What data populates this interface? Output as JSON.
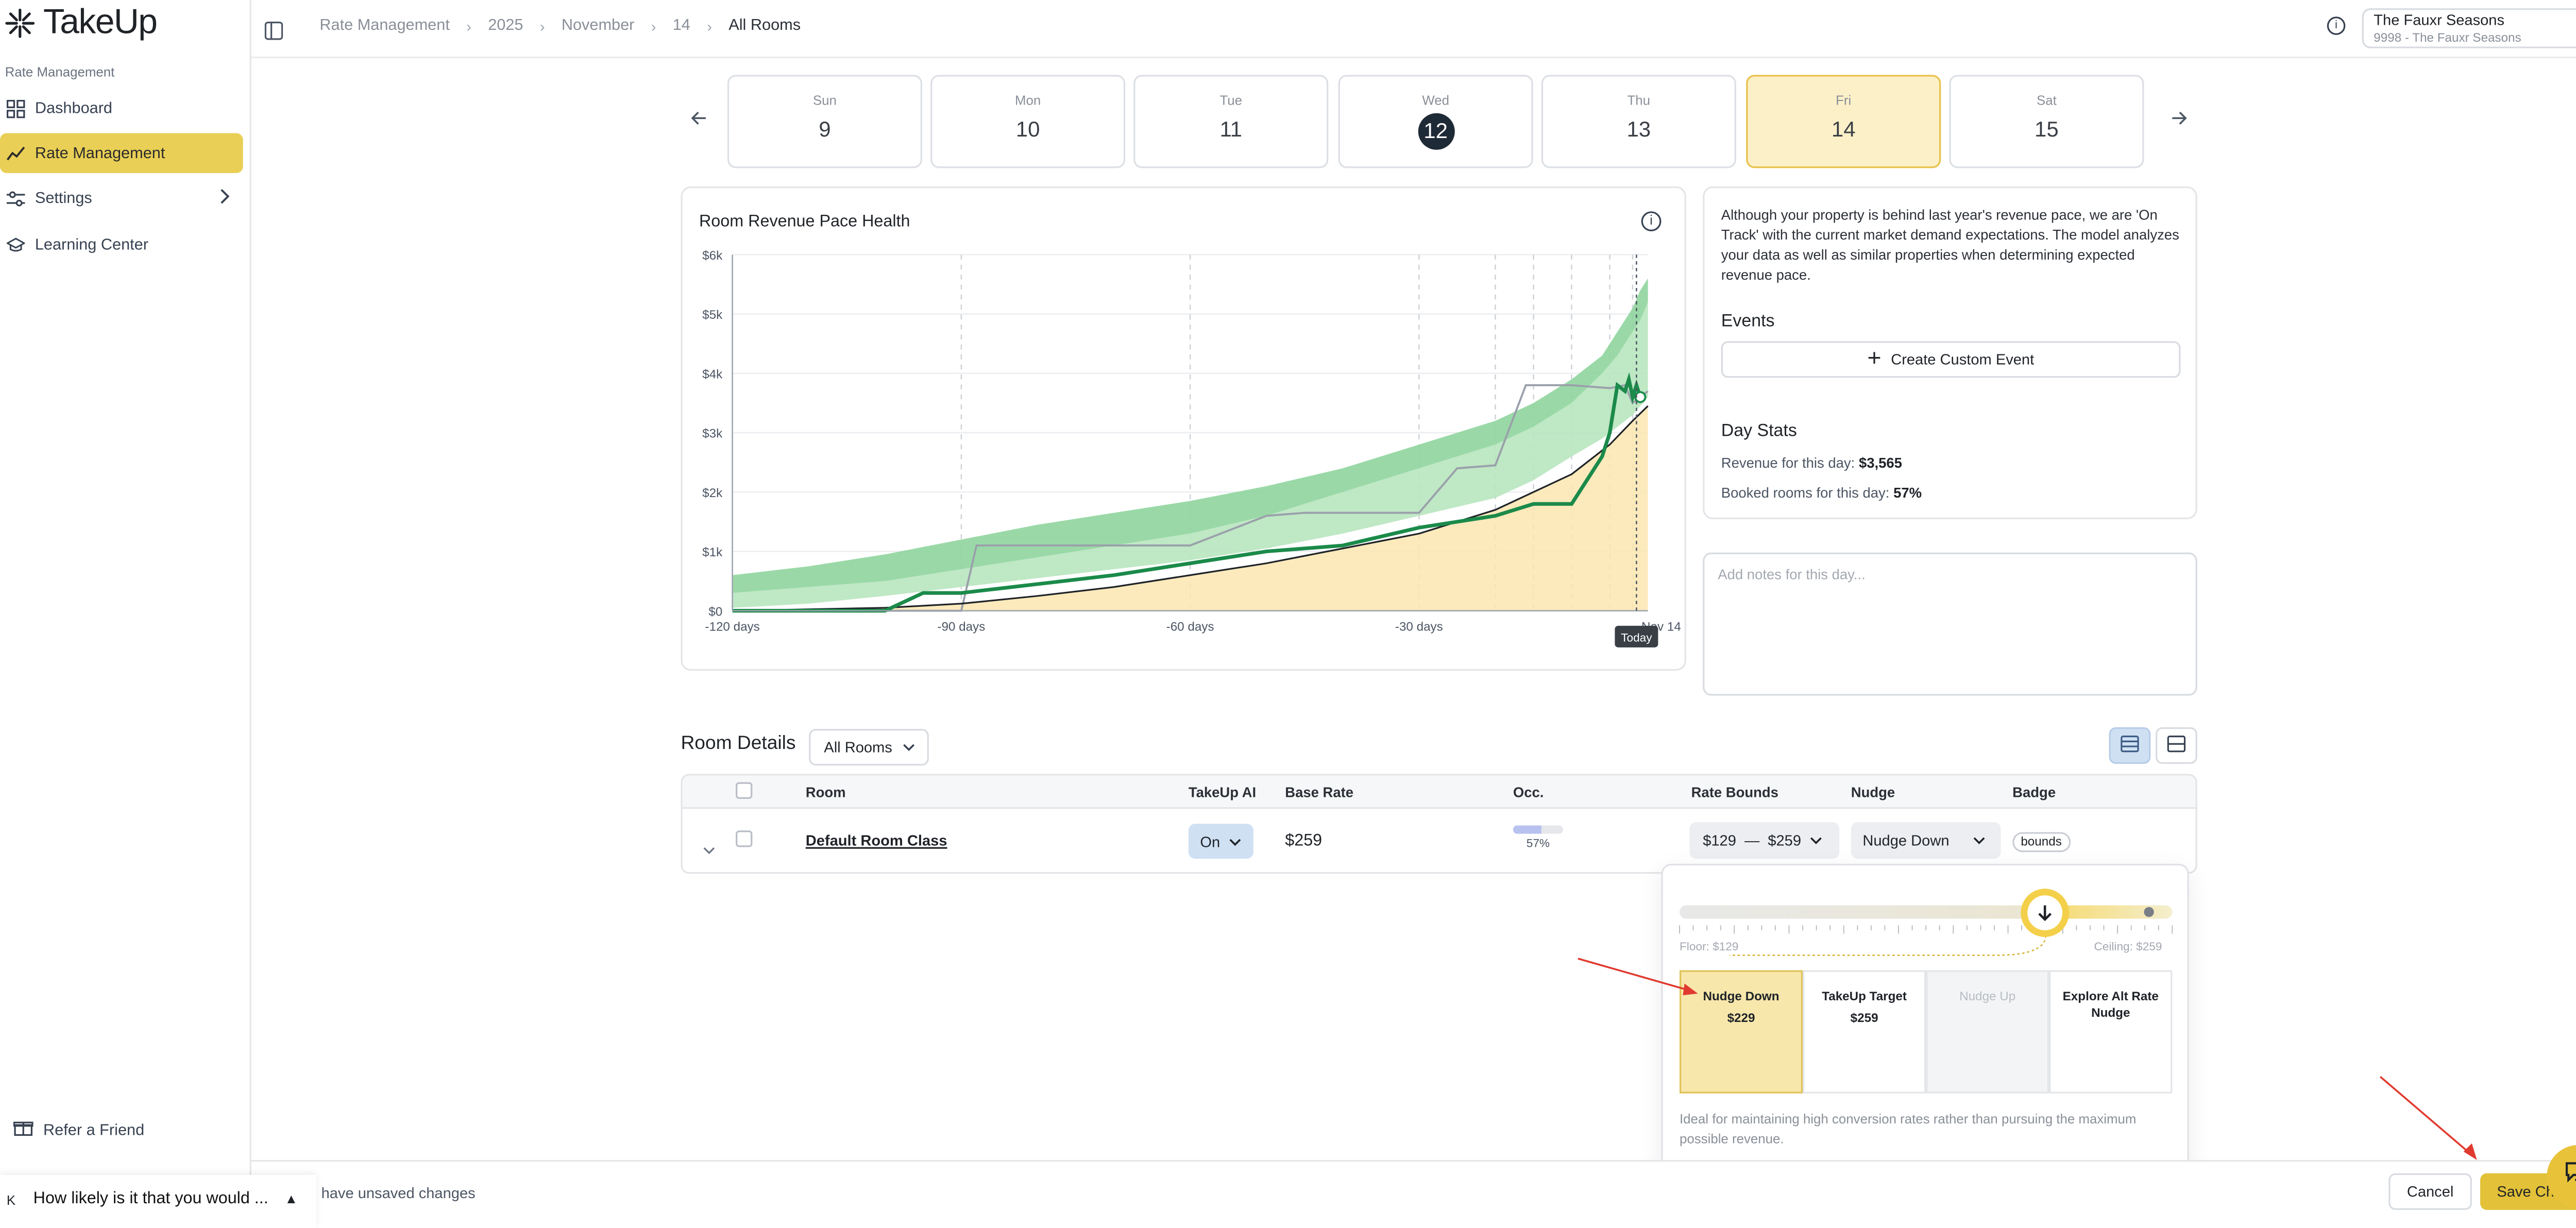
{
  "app": {
    "name": "TakeUp"
  },
  "sidebar": {
    "section": "Rate Management",
    "items": [
      {
        "label": "Dashboard",
        "icon": "dashboard-icon"
      },
      {
        "label": "Rate Management",
        "icon": "trend-icon",
        "active": true
      },
      {
        "label": "Settings",
        "icon": "sliders-icon"
      },
      {
        "label": "Learning Center",
        "icon": "graduation-cap-icon"
      }
    ],
    "refer": "Refer a Friend"
  },
  "breadcrumb": [
    "Rate Management",
    "2025",
    "November",
    "14",
    "All Rooms"
  ],
  "property": {
    "name": "The Fauxr Seasons",
    "sub": "9998 - The Fauxr Seasons"
  },
  "days": [
    {
      "name": "Sun",
      "num": "9"
    },
    {
      "name": "Mon",
      "num": "10"
    },
    {
      "name": "Tue",
      "num": "11"
    },
    {
      "name": "Wed",
      "num": "12",
      "today": true
    },
    {
      "name": "Thu",
      "num": "13"
    },
    {
      "name": "Fri",
      "num": "14",
      "selected": true
    },
    {
      "name": "Sat",
      "num": "15"
    }
  ],
  "chart": {
    "title": "Room Revenue Pace Health",
    "today_label": "Today",
    "chart_data": {
      "type": "area",
      "title": "Room Revenue Pace Health",
      "y_ticks": [
        "$0",
        "$1k",
        "$2k",
        "$3k",
        "$4k",
        "$5k",
        "$6k"
      ],
      "x_ticks": [
        "-120 days",
        "-90 days",
        "-60 days",
        "-30 days",
        "Nov 14"
      ],
      "ylim": [
        0,
        6000
      ],
      "xlim": [
        -120,
        0
      ],
      "series": [
        {
          "x": [
            -120,
            -110,
            -100,
            -90,
            -80,
            -70,
            -60,
            -50,
            -40,
            -30,
            -20,
            -15,
            -10,
            -6,
            -4,
            -2,
            -1,
            0
          ],
          "values": [
            300,
            400,
            500,
            700,
            900,
            1100,
            1300,
            1600,
            2000,
            2400,
            2800,
            3100,
            3500,
            4000,
            4300,
            4700,
            4900,
            5200
          ]
        },
        {
          "x": [
            -120,
            -110,
            -100,
            -90,
            -80,
            -70,
            -60,
            -50,
            -40,
            -30,
            -20,
            -15,
            -10,
            -6,
            -4,
            -2,
            -1,
            0
          ],
          "values": [
            600,
            750,
            950,
            1200,
            1450,
            1650,
            1850,
            2100,
            2400,
            2800,
            3200,
            3500,
            3900,
            4300,
            4700,
            5100,
            5400,
            5600
          ]
        },
        {
          "x": [
            -120,
            -110,
            -100,
            -90,
            -80,
            -70,
            -60,
            -50,
            -40,
            -30,
            -20,
            -15,
            -10,
            -6,
            -4,
            -2,
            -1,
            0
          ],
          "values": [
            50,
            120,
            250,
            400,
            550,
            700,
            850,
            1050,
            1300,
            1600,
            1900,
            2200,
            2600,
            2900,
            3100,
            3300,
            3450,
            3600
          ]
        },
        {
          "x": [
            -120,
            -90,
            -88,
            -70,
            -60,
            -50,
            -45,
            -40,
            -30,
            -25,
            -20,
            -16,
            -15,
            -10,
            -5,
            -3,
            -2,
            -1,
            0
          ],
          "values": [
            0,
            0,
            1100,
            1100,
            1100,
            1600,
            1650,
            1650,
            1650,
            2400,
            2450,
            3800,
            3800,
            3800,
            3750,
            3800,
            3500,
            3600,
            3700
          ]
        },
        {
          "x": [
            -120,
            -100,
            -90,
            -80,
            -70,
            -60,
            -50,
            -40,
            -30,
            -20,
            -10,
            -5,
            -2,
            0
          ],
          "values": [
            0,
            50,
            120,
            250,
            400,
            600,
            800,
            1050,
            1300,
            1700,
            2300,
            2800,
            3200,
            3450
          ]
        },
        {
          "x": [
            -120,
            -100,
            -95,
            -90,
            -80,
            -70,
            -60,
            -50,
            -40,
            -30,
            -20,
            -15,
            -10,
            -6,
            -5,
            -4,
            -3,
            -2.5,
            -2,
            -1.5,
            -1
          ],
          "values": [
            0,
            0,
            300,
            300,
            450,
            600,
            800,
            1000,
            1100,
            1400,
            1600,
            1800,
            1800,
            2600,
            3000,
            3800,
            3700,
            3900,
            3600,
            3800,
            3600
          ]
        }
      ]
    }
  },
  "summary": {
    "text": "Although your property is behind last year's revenue pace, we are 'On Track' with the current market demand expectations. The model analyzes your data as well as similar properties when determining expected revenue pace.",
    "events_title": "Events",
    "create_event": "Create Custom Event",
    "daystats_title": "Day Stats",
    "revenue_label": "Revenue for this day:",
    "revenue_value": "$3,565",
    "booked_label": "Booked rooms for this day:",
    "booked_value": "57%"
  },
  "notes": {
    "placeholder": "Add notes for this day..."
  },
  "room_details": {
    "title": "Room Details",
    "filter": "All Rooms",
    "columns": [
      "Room",
      "TakeUp AI",
      "Base Rate",
      "Occ.",
      "Rate Bounds",
      "Nudge",
      "Badge"
    ],
    "row": {
      "room": "Default Room Class",
      "ai": "On",
      "base_rate": "$259",
      "occ": "57%",
      "occ_fraction": 0.57,
      "bound_low": "$129",
      "bound_dash": "—",
      "bound_high": "$259",
      "nudge": "Nudge Down",
      "badge": "bounds"
    }
  },
  "nudge_popover": {
    "floor": "Floor: $129",
    "ceiling": "Ceiling: $259",
    "options": [
      {
        "label": "Nudge Down",
        "price": "$229",
        "selected": true
      },
      {
        "label": "TakeUp Target",
        "price": "$259"
      },
      {
        "label": "Nudge Up",
        "price": "",
        "disabled": true
      },
      {
        "label": "Explore Alt Rate Nudge",
        "price": ""
      }
    ],
    "description": "Ideal for maintaining high conversion rates rather than pursuing the maximum possible revenue."
  },
  "footer": {
    "unsaved": "have unsaved changes",
    "cancel": "Cancel",
    "save": "Save Ch"
  },
  "survey": {
    "prefix": "K",
    "question": "How likely is it that you would ..."
  },
  "colors": {
    "accent": "#e9cf55",
    "selected_day": "#fbf0c8",
    "green": "#1b8a4a",
    "band": "#88d39a"
  }
}
